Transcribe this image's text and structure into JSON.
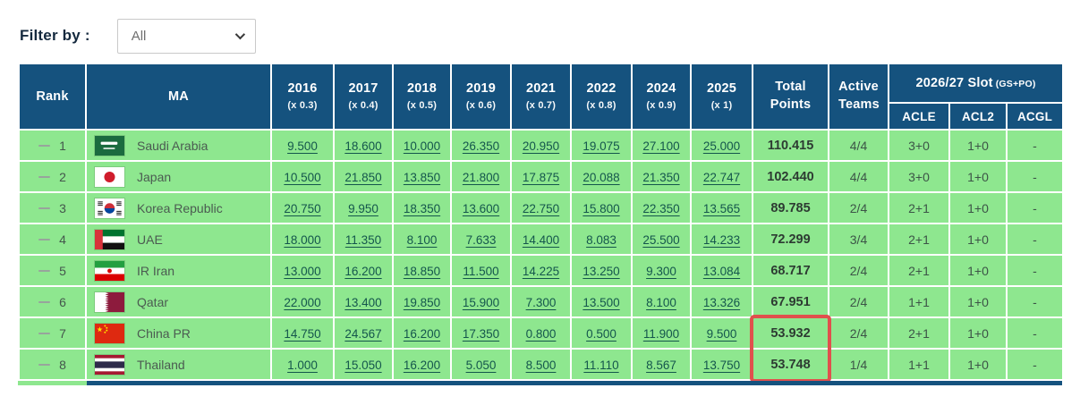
{
  "filter": {
    "label": "Filter by :",
    "selected_option": "All"
  },
  "table": {
    "headers": {
      "rank": "Rank",
      "ma": "MA",
      "years": [
        {
          "year": "2016",
          "multiplier": "(x 0.3)"
        },
        {
          "year": "2017",
          "multiplier": "(x 0.4)"
        },
        {
          "year": "2018",
          "multiplier": "(x 0.5)"
        },
        {
          "year": "2019",
          "multiplier": "(x 0.6)"
        },
        {
          "year": "2021",
          "multiplier": "(x 0.7)"
        },
        {
          "year": "2022",
          "multiplier": "(x 0.8)"
        },
        {
          "year": "2024",
          "multiplier": "(x 0.9)"
        },
        {
          "year": "2025",
          "multiplier": "(x 1)"
        }
      ],
      "total_points": "Total Points",
      "active_teams": "Active Teams",
      "slot_group_title": "2026/27 Slot",
      "slot_group_suffix": "(GS+PO)",
      "slot_columns": [
        "ACLE",
        "ACL2",
        "ACGL"
      ]
    },
    "rows": [
      {
        "rank": "1",
        "trend": "same",
        "country": "Saudi Arabia",
        "flag": "saudi-arabia",
        "values": [
          "9.500",
          "18.600",
          "10.000",
          "26.350",
          "20.950",
          "19.075",
          "27.100",
          "25.000"
        ],
        "total": "110.415",
        "active": "4/4",
        "acle": "3+0",
        "acl2": "1+0",
        "acgl": "-"
      },
      {
        "rank": "2",
        "trend": "same",
        "country": "Japan",
        "flag": "japan",
        "values": [
          "10.500",
          "21.850",
          "13.850",
          "21.800",
          "17.875",
          "20.088",
          "21.350",
          "22.747"
        ],
        "total": "102.440",
        "active": "4/4",
        "acle": "3+0",
        "acl2": "1+0",
        "acgl": "-"
      },
      {
        "rank": "3",
        "trend": "same",
        "country": "Korea Republic",
        "flag": "korea-republic",
        "values": [
          "20.750",
          "9.950",
          "18.350",
          "13.600",
          "22.750",
          "15.800",
          "22.350",
          "13.565"
        ],
        "total": "89.785",
        "active": "2/4",
        "acle": "2+1",
        "acl2": "1+0",
        "acgl": "-"
      },
      {
        "rank": "4",
        "trend": "same",
        "country": "UAE",
        "flag": "uae",
        "values": [
          "18.000",
          "11.350",
          "8.100",
          "7.633",
          "14.400",
          "8.083",
          "25.500",
          "14.233"
        ],
        "total": "72.299",
        "active": "3/4",
        "acle": "2+1",
        "acl2": "1+0",
        "acgl": "-"
      },
      {
        "rank": "5",
        "trend": "same",
        "country": "IR Iran",
        "flag": "ir-iran",
        "values": [
          "13.000",
          "16.200",
          "18.850",
          "11.500",
          "14.225",
          "13.250",
          "9.300",
          "13.084"
        ],
        "total": "68.717",
        "active": "2/4",
        "acle": "2+1",
        "acl2": "1+0",
        "acgl": "-"
      },
      {
        "rank": "6",
        "trend": "same",
        "country": "Qatar",
        "flag": "qatar",
        "values": [
          "22.000",
          "13.400",
          "19.850",
          "15.900",
          "7.300",
          "13.500",
          "8.100",
          "13.326"
        ],
        "total": "67.951",
        "active": "2/4",
        "acle": "1+1",
        "acl2": "1+0",
        "acgl": "-"
      },
      {
        "rank": "7",
        "trend": "same",
        "country": "China PR",
        "flag": "china-pr",
        "values": [
          "14.750",
          "24.567",
          "16.200",
          "17.350",
          "0.800",
          "0.500",
          "11.900",
          "9.500"
        ],
        "total": "53.932",
        "active": "2/4",
        "acle": "2+1",
        "acl2": "1+0",
        "acgl": "-"
      },
      {
        "rank": "8",
        "trend": "same",
        "country": "Thailand",
        "flag": "thailand",
        "values": [
          "1.000",
          "15.050",
          "16.200",
          "5.050",
          "8.500",
          "11.110",
          "8.567",
          "13.750"
        ],
        "total": "53.748",
        "active": "1/4",
        "acle": "1+1",
        "acl2": "1+0",
        "acgl": "-"
      }
    ]
  },
  "highlight": {
    "target": "total-points-column",
    "rows": [
      7,
      8
    ]
  },
  "colors": {
    "header_bg": "#15527e",
    "row_bg": "#8ee78f",
    "highlight_border": "#e0504d"
  }
}
